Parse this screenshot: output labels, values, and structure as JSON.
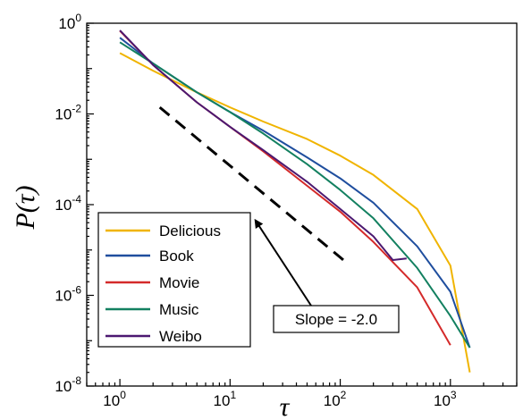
{
  "chart_data": {
    "type": "line",
    "xscale": "log",
    "yscale": "log",
    "xlim": [
      0.5,
      4000
    ],
    "ylim": [
      1e-08,
      1
    ],
    "xlabel": "τ",
    "ylabel": "P(τ)",
    "x_ticks": [
      {
        "base": "10",
        "exp": "0"
      },
      {
        "base": "10",
        "exp": "1"
      },
      {
        "base": "10",
        "exp": "2"
      },
      {
        "base": "10",
        "exp": "3"
      }
    ],
    "y_ticks": [
      {
        "base": "10",
        "exp": "0"
      },
      {
        "base": "10",
        "exp": "-2"
      },
      {
        "base": "10",
        "exp": "-4"
      },
      {
        "base": "10",
        "exp": "-6"
      },
      {
        "base": "10",
        "exp": "-8"
      }
    ],
    "legend_position": "bottom-left",
    "series": [
      {
        "name": "Delicious",
        "color": "#f0b400",
        "x": [
          1,
          2,
          5,
          10,
          20,
          50,
          100,
          200,
          500,
          1000,
          1500
        ],
        "y": [
          0.22,
          0.09,
          0.03,
          0.014,
          0.0068,
          0.0028,
          0.0012,
          0.00045,
          8e-05,
          4.5e-06,
          2e-08
        ]
      },
      {
        "name": "Book",
        "color": "#1f4e9e",
        "x": [
          1,
          2,
          5,
          10,
          20,
          50,
          100,
          200,
          500,
          1000,
          1500
        ],
        "y": [
          0.48,
          0.13,
          0.03,
          0.011,
          0.0043,
          0.0011,
          0.00038,
          0.00011,
          1.2e-05,
          1.2e-06,
          7e-08
        ]
      },
      {
        "name": "Movie",
        "color": "#d42a2a",
        "x": [
          1,
          2,
          5,
          10,
          20,
          50,
          100,
          200,
          500,
          1000
        ],
        "y": [
          0.68,
          0.12,
          0.018,
          0.0052,
          0.0015,
          0.00026,
          7e-05,
          1.5e-05,
          1.5e-06,
          8e-08
        ]
      },
      {
        "name": "Music",
        "color": "#138060",
        "x": [
          1,
          2,
          5,
          10,
          20,
          50,
          100,
          200,
          500,
          1000,
          1500
        ],
        "y": [
          0.38,
          0.13,
          0.03,
          0.011,
          0.0037,
          0.00078,
          0.00021,
          5e-05,
          4e-06,
          3.5e-07,
          7e-08
        ]
      },
      {
        "name": "Weibo",
        "color": "#4b1870",
        "x": [
          1,
          2,
          5,
          10,
          20,
          50,
          100,
          200,
          300,
          400
        ],
        "y": [
          0.7,
          0.12,
          0.018,
          0.0052,
          0.0016,
          0.00032,
          8e-05,
          2e-05,
          6e-06,
          6.5e-06
        ]
      }
    ],
    "reference_line": {
      "slope": -2.0,
      "x": [
        2.3,
        115
      ],
      "y": [
        0.014,
        5.2e-06
      ]
    },
    "annotations": [
      {
        "text": "Slope = -2.0",
        "arrow_to": {
          "x": 17,
          "y": 4.5e-05
        }
      }
    ]
  }
}
